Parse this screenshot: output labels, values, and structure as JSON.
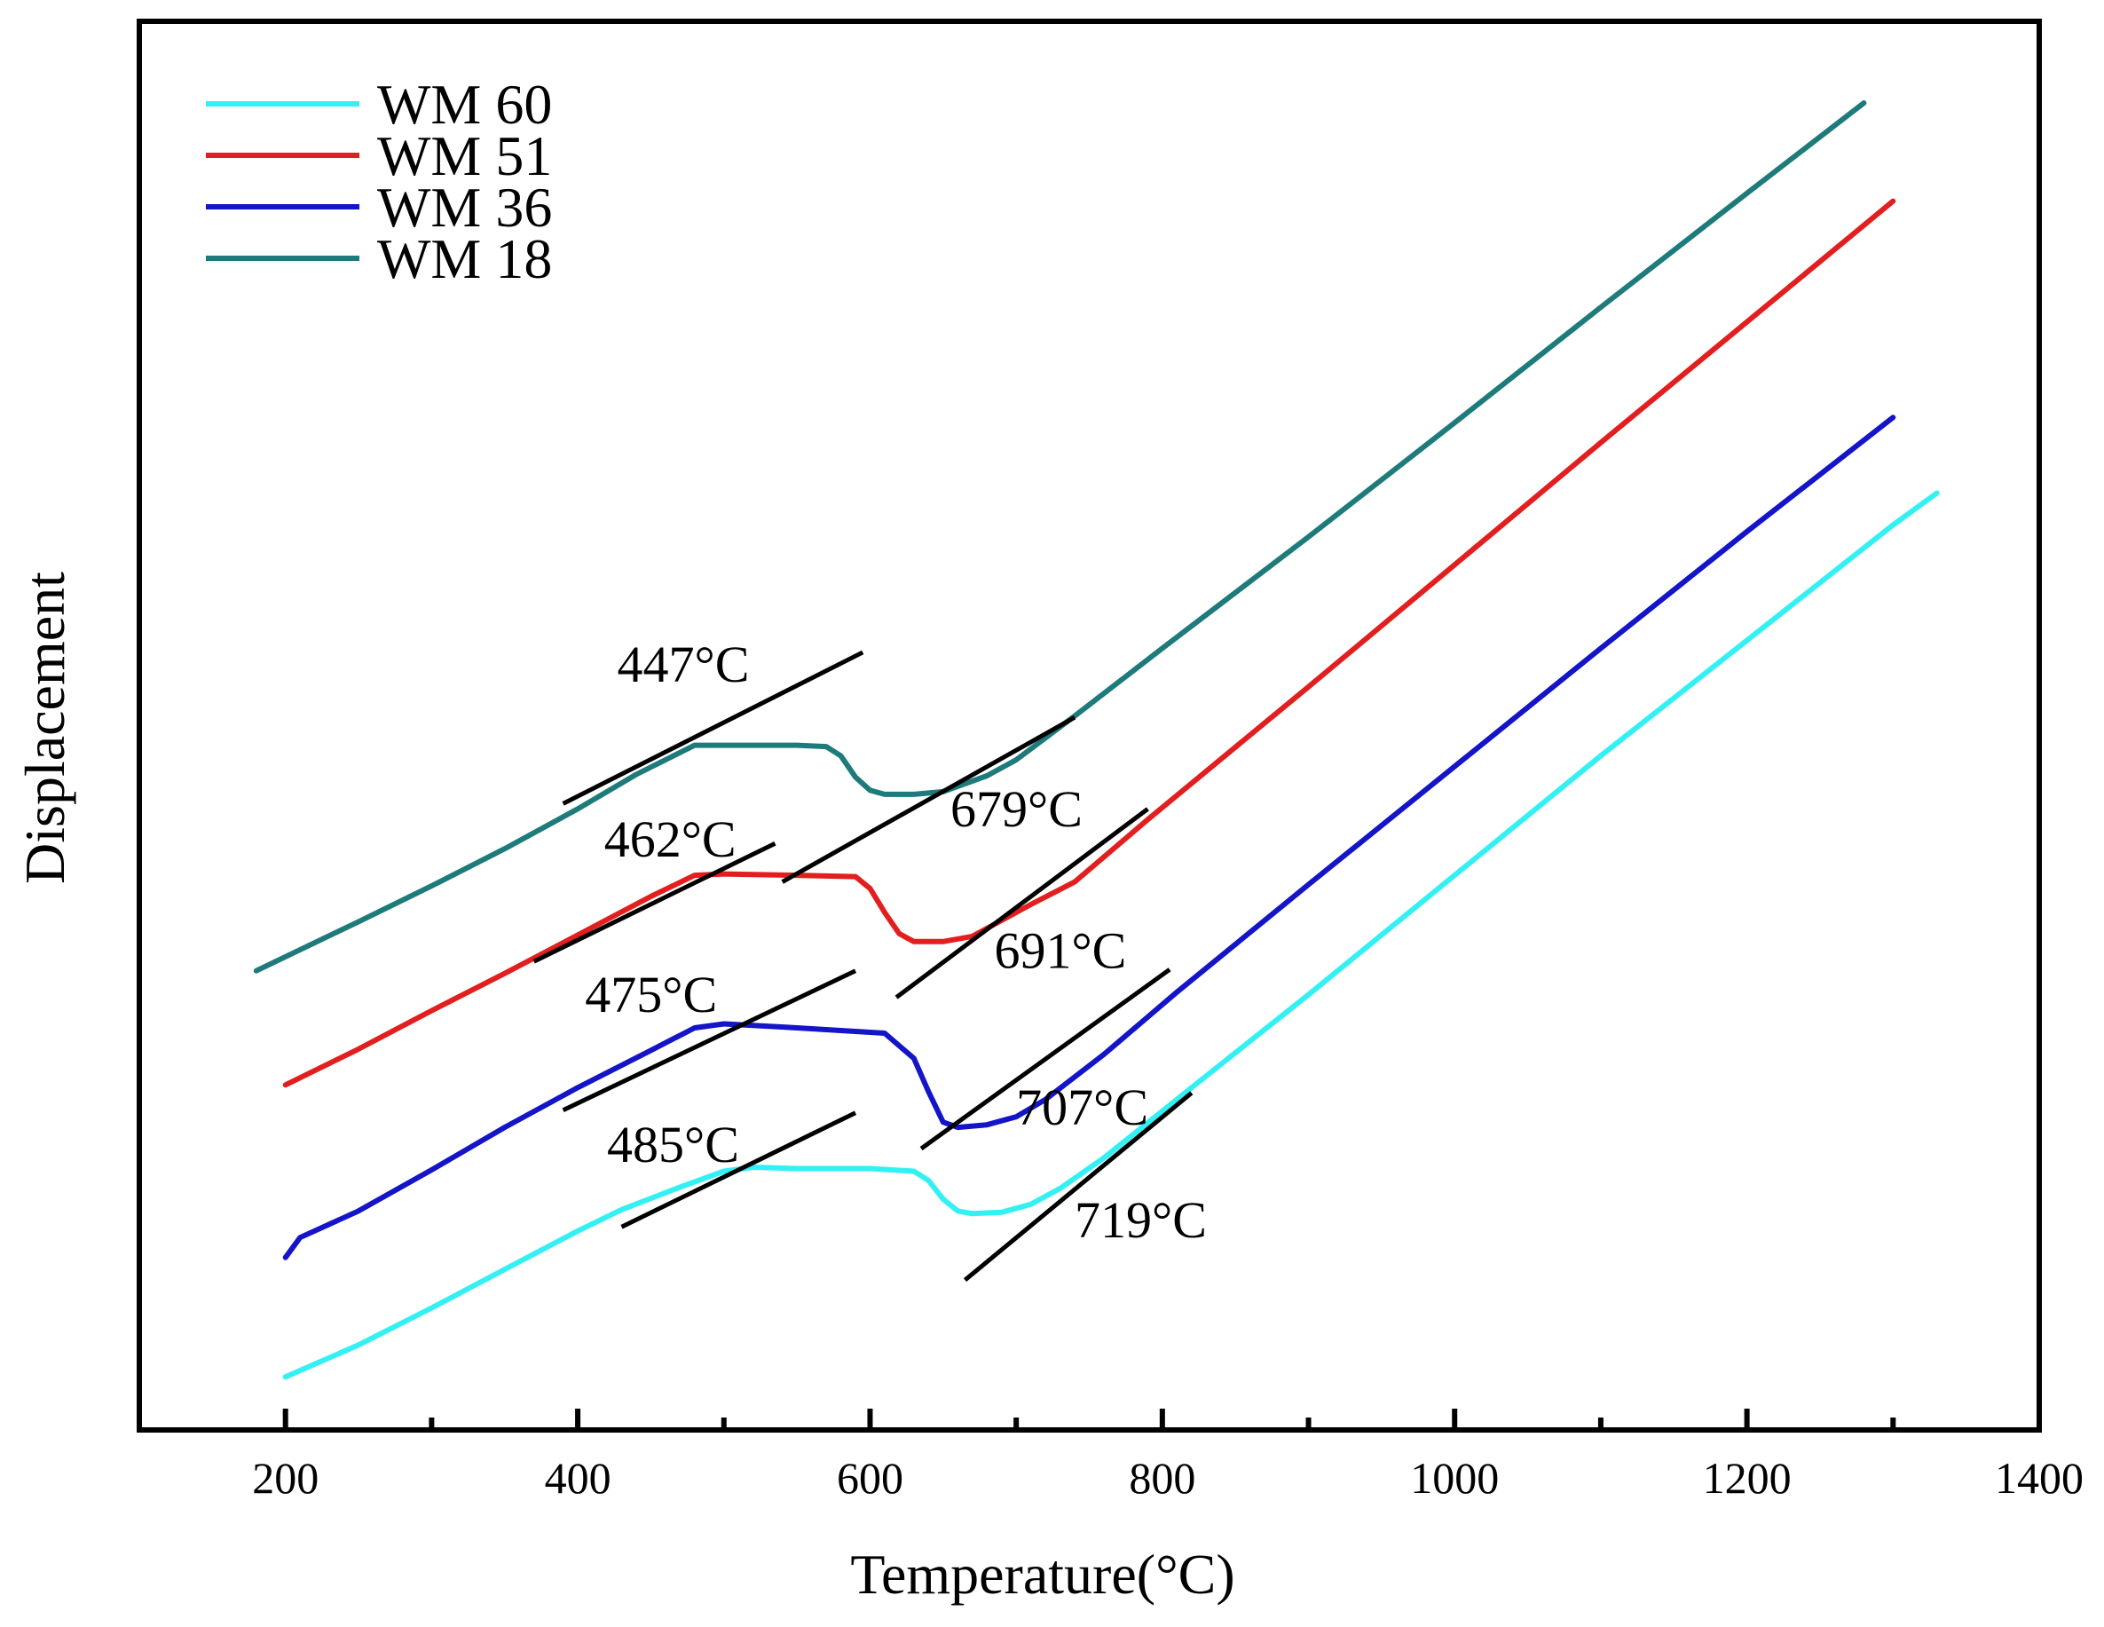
{
  "chart_data": {
    "type": "line",
    "title": "",
    "xlabel": "Temperature(°C)",
    "ylabel": "Displacement",
    "xlim": [
      100,
      1400
    ],
    "ylim": [
      0,
      100
    ],
    "xticks_major": [
      200,
      400,
      600,
      800,
      1000,
      1200,
      1400
    ],
    "xticks_minor": [
      300,
      500,
      700,
      900,
      1100,
      1300
    ],
    "grid": false,
    "legend": {
      "placement": "top-left",
      "entries": [
        {
          "label": "WM 60",
          "color": "#33f0f5"
        },
        {
          "label": "WM 51",
          "color": "#e31e1e"
        },
        {
          "label": "WM 36",
          "color": "#1414c8"
        },
        {
          "label": "WM 18",
          "color": "#1e7b7b"
        }
      ]
    },
    "series": [
      {
        "name": "WM 60",
        "color": "#33f0f5",
        "points": [
          [
            200,
            4.0
          ],
          [
            250,
            6.4
          ],
          [
            300,
            9.2
          ],
          [
            350,
            12.1
          ],
          [
            400,
            15.0
          ],
          [
            430,
            16.6
          ],
          [
            470,
            18.3
          ],
          [
            500,
            19.5
          ],
          [
            520,
            19.8
          ],
          [
            550,
            19.7
          ],
          [
            600,
            19.7
          ],
          [
            630,
            19.5
          ],
          [
            640,
            18.8
          ],
          [
            650,
            17.4
          ],
          [
            660,
            16.5
          ],
          [
            670,
            16.3
          ],
          [
            690,
            16.4
          ],
          [
            710,
            17.0
          ],
          [
            730,
            18.2
          ],
          [
            760,
            20.5
          ],
          [
            820,
            25.8
          ],
          [
            900,
            32.8
          ],
          [
            1000,
            41.8
          ],
          [
            1100,
            50.8
          ],
          [
            1200,
            59.5
          ],
          [
            1300,
            68.2
          ],
          [
            1330,
            70.6
          ]
        ]
      },
      {
        "name": "WM 36",
        "color": "#1414c8",
        "points": [
          [
            200,
            13.0
          ],
          [
            210,
            14.5
          ],
          [
            250,
            16.5
          ],
          [
            300,
            19.6
          ],
          [
            350,
            22.8
          ],
          [
            400,
            25.8
          ],
          [
            450,
            28.6
          ],
          [
            480,
            30.3
          ],
          [
            500,
            30.6
          ],
          [
            550,
            30.3
          ],
          [
            610,
            29.9
          ],
          [
            630,
            28.0
          ],
          [
            640,
            25.5
          ],
          [
            650,
            23.2
          ],
          [
            660,
            22.8
          ],
          [
            680,
            23.0
          ],
          [
            700,
            23.6
          ],
          [
            720,
            24.9
          ],
          [
            760,
            28.3
          ],
          [
            810,
            33.0
          ],
          [
            900,
            41.1
          ],
          [
            1000,
            50.0
          ],
          [
            1100,
            58.9
          ],
          [
            1200,
            67.7
          ],
          [
            1300,
            76.3
          ]
        ]
      },
      {
        "name": "WM 51",
        "color": "#e31e1e",
        "points": [
          [
            200,
            26.0
          ],
          [
            250,
            28.7
          ],
          [
            300,
            31.6
          ],
          [
            350,
            34.4
          ],
          [
            400,
            37.3
          ],
          [
            450,
            40.2
          ],
          [
            480,
            41.8
          ],
          [
            500,
            41.9
          ],
          [
            550,
            41.8
          ],
          [
            590,
            41.7
          ],
          [
            600,
            40.8
          ],
          [
            610,
            39.0
          ],
          [
            620,
            37.4
          ],
          [
            630,
            36.8
          ],
          [
            650,
            36.8
          ],
          [
            670,
            37.2
          ],
          [
            690,
            38.4
          ],
          [
            710,
            39.6
          ],
          [
            740,
            41.3
          ],
          [
            790,
            46.0
          ],
          [
            900,
            56.0
          ],
          [
            1000,
            65.2
          ],
          [
            1100,
            74.4
          ],
          [
            1200,
            83.5
          ],
          [
            1300,
            92.6
          ]
        ]
      },
      {
        "name": "WM 18",
        "color": "#1e7b7b",
        "points": [
          [
            180,
            34.6
          ],
          [
            250,
            38.3
          ],
          [
            300,
            41.0
          ],
          [
            350,
            43.8
          ],
          [
            400,
            46.8
          ],
          [
            440,
            49.4
          ],
          [
            480,
            51.6
          ],
          [
            500,
            51.6
          ],
          [
            550,
            51.6
          ],
          [
            570,
            51.5
          ],
          [
            580,
            50.8
          ],
          [
            590,
            49.2
          ],
          [
            600,
            48.2
          ],
          [
            610,
            47.9
          ],
          [
            630,
            47.9
          ],
          [
            650,
            48.1
          ],
          [
            680,
            49.3
          ],
          [
            700,
            50.5
          ],
          [
            740,
            53.8
          ],
          [
            800,
            58.9
          ],
          [
            900,
            67.3
          ],
          [
            1000,
            75.9
          ],
          [
            1100,
            84.6
          ],
          [
            1200,
            93.2
          ],
          [
            1280,
            100.0
          ]
        ]
      }
    ],
    "tangent_lines": [
      {
        "x1": 390,
        "y1": 47.2,
        "x2": 595,
        "y2": 58.6
      },
      {
        "x1": 540,
        "y1": 41.3,
        "x2": 740,
        "y2": 53.7
      },
      {
        "x1": 370,
        "y1": 35.3,
        "x2": 535,
        "y2": 44.2
      },
      {
        "x1": 618,
        "y1": 32.6,
        "x2": 790,
        "y2": 46.8
      },
      {
        "x1": 390,
        "y1": 24.1,
        "x2": 590,
        "y2": 34.6
      },
      {
        "x1": 635,
        "y1": 21.2,
        "x2": 805,
        "y2": 34.7
      },
      {
        "x1": 430,
        "y1": 15.3,
        "x2": 590,
        "y2": 23.9
      },
      {
        "x1": 665,
        "y1": 11.3,
        "x2": 820,
        "y2": 25.4
      }
    ],
    "annotations": [
      {
        "text": "447°C",
        "x": 427,
        "y": 56.4
      },
      {
        "text": "679°C",
        "x": 655,
        "y": 45.5
      },
      {
        "text": "462°C",
        "x": 418,
        "y": 43.2
      },
      {
        "text": "691°C",
        "x": 685,
        "y": 34.8
      },
      {
        "text": "475°C",
        "x": 405,
        "y": 31.5
      },
      {
        "text": "707°C",
        "x": 700,
        "y": 23.0
      },
      {
        "text": "485°C",
        "x": 420,
        "y": 20.2
      },
      {
        "text": "719°C",
        "x": 740,
        "y": 14.5
      }
    ]
  }
}
